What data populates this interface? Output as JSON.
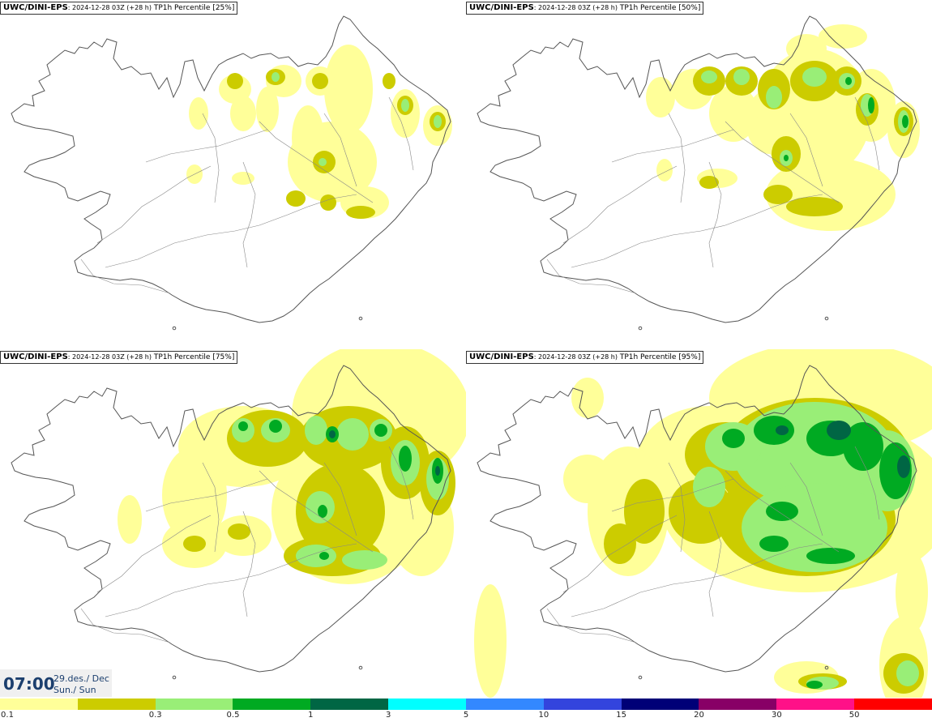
{
  "panels": [
    {
      "model": "UWC/DINI-EPS",
      "run": ": 2024-12-28 03Z (+28 h)",
      "product": " TP1h Percentile [25%]"
    },
    {
      "model": "UWC/DINI-EPS",
      "run": ": 2024-12-28 03Z (+28 h)",
      "product": " TP1h Percentile [50%]"
    },
    {
      "model": "UWC/DINI-EPS",
      "run": ": 2024-12-28 03Z (+28 h)",
      "product": " TP1h Percentile [75%]"
    },
    {
      "model": "UWC/DINI-EPS",
      "run": ": 2024-12-28 03Z (+28 h)",
      "product": " TP1h Percentile [95%]"
    }
  ],
  "valid_time": {
    "time": "07:00",
    "date": "29.des./ Dec",
    "day": "Sun./ Sun"
  },
  "legend": {
    "ticks": [
      "0.1",
      "0.3",
      "0.5",
      "1",
      "3",
      "5",
      "10",
      "15",
      "20",
      "30",
      "50"
    ],
    "colors": [
      "#ffff99",
      "#cccc00",
      "#99ee77",
      "#00aa22",
      "#006644",
      "#00ffff",
      "#3388ff",
      "#3344dd",
      "#000077",
      "#880066",
      "#ff1188",
      "#ff0000"
    ]
  },
  "palette": {
    "light_yellow": "#ffff99",
    "olive": "#cccc00",
    "light_green": "#99ee77",
    "green": "#00aa22",
    "dark_green": "#006644",
    "coastline": "#555555"
  }
}
